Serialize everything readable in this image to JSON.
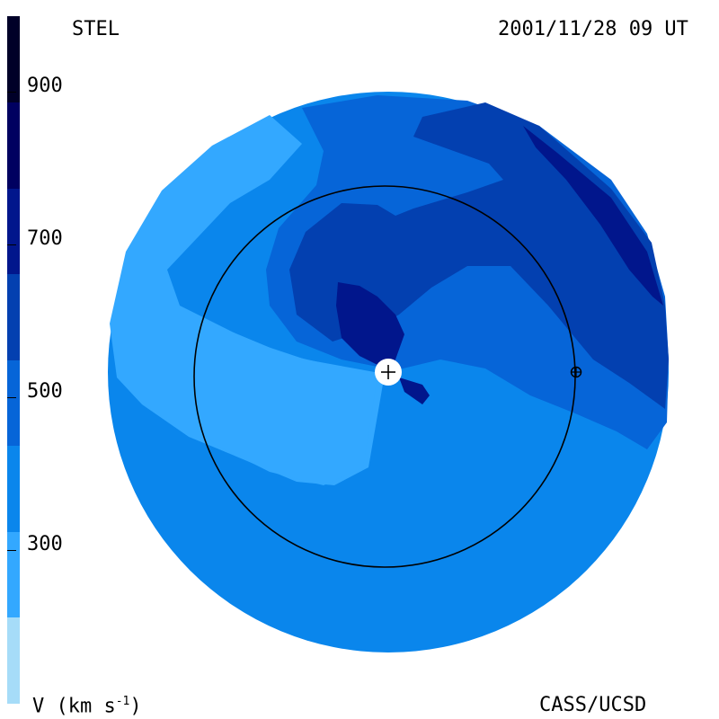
{
  "header": {
    "source": "STEL",
    "datetime": "2001/11/28 09 UT"
  },
  "footer": {
    "unit_label": "V (km s",
    "unit_exp": "-1",
    "unit_close": ")",
    "credit": "CASS/UCSD"
  },
  "colorbar": {
    "bands": [
      "#a6dcf8",
      "#33a8ff",
      "#0a86ec",
      "#0665d8",
      "#0340b0",
      "#01168c",
      "#000060",
      "#000028"
    ],
    "ticks": [
      "300",
      "500",
      "700",
      "900"
    ]
  },
  "map": {
    "colors": {
      "disc": "#0a86ec",
      "light": "#33a8ff",
      "mid": "#0665d8",
      "dark": "#0340b0",
      "darker": "#01168c"
    },
    "sun_symbol": "sun-plus-icon",
    "earth_symbol": "earth-orbit-icon"
  }
}
